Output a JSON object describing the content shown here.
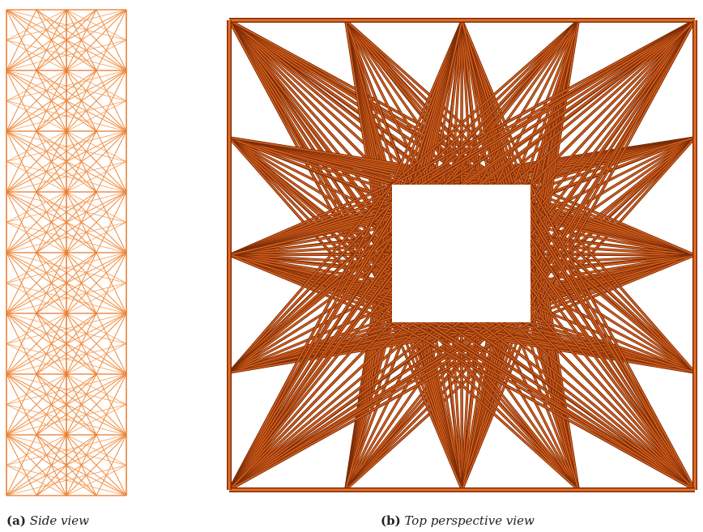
{
  "figure": {
    "panels": [
      {
        "label": "(a)",
        "caption": "Side view"
      },
      {
        "label": "(b)",
        "caption": "Top perspective view"
      }
    ]
  }
}
